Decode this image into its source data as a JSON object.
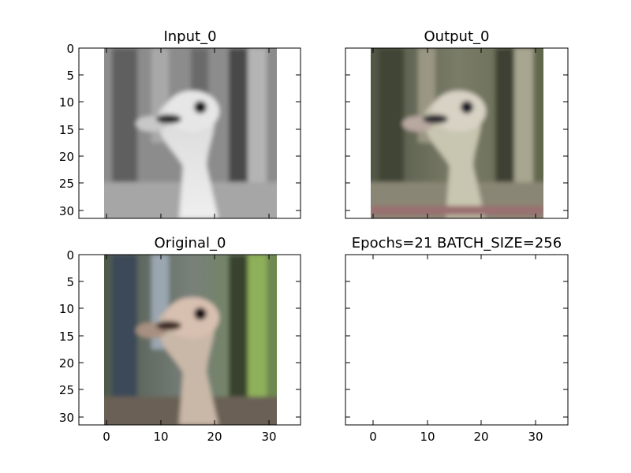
{
  "chart_data": [
    {
      "type": "image",
      "title": "Input_0",
      "image": "grayscale ostrich head, 32x32",
      "colormap": "gray",
      "xlim": [
        -5,
        36
      ],
      "ylim": [
        31.5,
        -0.5
      ],
      "xticks": [],
      "yticks": [
        0,
        5,
        10,
        15,
        20,
        25,
        30
      ]
    },
    {
      "type": "image",
      "title": "Output_0",
      "image": "colorized ostrich head reconstruction, 32x32",
      "xlim": [
        -5,
        36
      ],
      "ylim": [
        31.5,
        -0.5
      ],
      "xticks": [],
      "yticks": [
        0,
        5,
        10,
        15,
        20,
        25,
        30
      ]
    },
    {
      "type": "image",
      "title": "Original_0",
      "image": "color ostrich head, 32x32",
      "xlim": [
        -5,
        36
      ],
      "ylim": [
        31.5,
        -0.5
      ],
      "xticks": [
        0,
        10,
        20,
        30
      ],
      "yticks": [
        0,
        5,
        10,
        15,
        20,
        25,
        30
      ]
    },
    {
      "type": "empty",
      "title": "Epochs=21 BATCH_SIZE=256",
      "xlim": [
        -5,
        36
      ],
      "ylim": [
        31.5,
        -0.5
      ],
      "xticks": [
        0,
        10,
        20,
        30
      ],
      "yticks": []
    }
  ]
}
